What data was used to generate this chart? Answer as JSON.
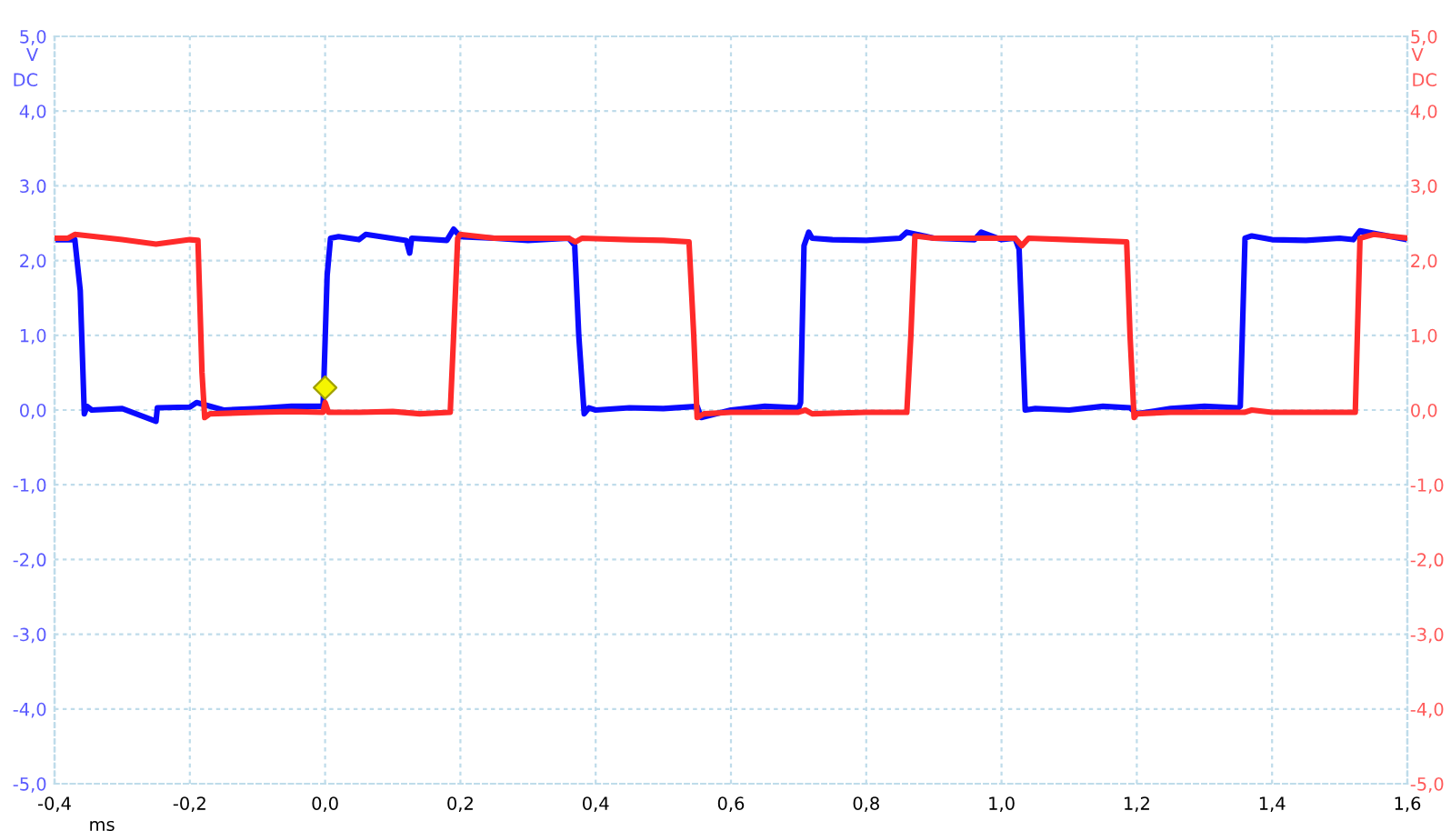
{
  "chart_data": {
    "type": "line",
    "xlabel": "ms",
    "ylabel": "V\nDC",
    "y2label": "V\nDC",
    "xlim": [
      -0.4,
      1.6
    ],
    "xticks": [
      {
        "value": -0.4,
        "label": "-0,4"
      },
      {
        "value": -0.2,
        "label": "-0,2"
      },
      {
        "value": 0.0,
        "label": "0,0"
      },
      {
        "value": 0.2,
        "label": "0,2"
      },
      {
        "value": 0.4,
        "label": "0,4"
      },
      {
        "value": 0.6,
        "label": "0,6"
      },
      {
        "value": 0.8,
        "label": "0,8"
      },
      {
        "value": 1.0,
        "label": "1,0"
      },
      {
        "value": 1.2,
        "label": "1,2"
      },
      {
        "value": 1.4,
        "label": "1,4"
      },
      {
        "value": 1.6,
        "label": "1,6"
      }
    ],
    "ylim": [
      -5,
      5
    ],
    "yticks": [
      {
        "value": -5,
        "label": "-5,0"
      },
      {
        "value": -4,
        "label": "-4,0"
      },
      {
        "value": -3,
        "label": "-3,0"
      },
      {
        "value": -2,
        "label": "-2,0"
      },
      {
        "value": -1,
        "label": "-1,0"
      },
      {
        "value": 0,
        "label": "0,0"
      },
      {
        "value": 1,
        "label": "1,0"
      },
      {
        "value": 2,
        "label": "2,0"
      },
      {
        "value": 3,
        "label": "3,0"
      },
      {
        "value": 4,
        "label": "4,0"
      },
      {
        "value": 5,
        "label": "5,0"
      }
    ],
    "y2lim": [
      -5,
      5
    ],
    "y2ticks": [
      {
        "value": -5,
        "label": "-5,0"
      },
      {
        "value": -4,
        "label": "-4,0"
      },
      {
        "value": -3,
        "label": "-3,0"
      },
      {
        "value": -2,
        "label": "-2,0"
      },
      {
        "value": -1,
        "label": "-1,0"
      },
      {
        "value": 0,
        "label": "0,0"
      },
      {
        "value": 1,
        "label": "1,0"
      },
      {
        "value": 2,
        "label": "2,0"
      },
      {
        "value": 3,
        "label": "3,0"
      },
      {
        "value": 4,
        "label": "4,0"
      },
      {
        "value": 5,
        "label": "5,0"
      }
    ],
    "grid": true,
    "line_style": "solid",
    "legend": false,
    "series": [
      {
        "axis": "y2",
        "color": "#ff2a2a",
        "x": [
          -0.4,
          -0.38,
          -0.37,
          -0.3,
          -0.25,
          -0.2,
          -0.188,
          -0.182,
          -0.178,
          -0.17,
          -0.1,
          -0.05,
          -0.003,
          0.0,
          0.005,
          0.05,
          0.1,
          0.14,
          0.185,
          0.19,
          0.196,
          0.2,
          0.25,
          0.3,
          0.36,
          0.37,
          0.38,
          0.45,
          0.5,
          0.538,
          0.545,
          0.55,
          0.56,
          0.6,
          0.7,
          0.71,
          0.72,
          0.8,
          0.86,
          0.866,
          0.872,
          0.9,
          0.95,
          1.02,
          1.03,
          1.04,
          1.1,
          1.185,
          1.19,
          1.196,
          1.2,
          1.25,
          1.3,
          1.36,
          1.37,
          1.4,
          1.5,
          1.523,
          1.53,
          1.55,
          1.6
        ],
        "values": [
          2.3,
          2.3,
          2.35,
          2.28,
          2.22,
          2.28,
          2.27,
          0.5,
          -0.1,
          -0.05,
          -0.03,
          -0.02,
          -0.03,
          0.1,
          -0.03,
          -0.03,
          -0.02,
          -0.05,
          -0.03,
          1.0,
          2.3,
          2.35,
          2.3,
          2.3,
          2.3,
          2.25,
          2.3,
          2.28,
          2.27,
          2.25,
          1.0,
          -0.1,
          -0.05,
          -0.03,
          -0.03,
          0.0,
          -0.05,
          -0.03,
          -0.03,
          1.0,
          2.33,
          2.3,
          2.3,
          2.3,
          2.2,
          2.3,
          2.28,
          2.25,
          1.0,
          -0.1,
          -0.05,
          -0.03,
          -0.03,
          -0.03,
          0.0,
          -0.03,
          -0.03,
          -0.03,
          2.3,
          2.35,
          2.3
        ]
      },
      {
        "color": "#0a0aff",
        "x": [
          -0.4,
          -0.37,
          -0.362,
          -0.356,
          -0.352,
          -0.345,
          -0.3,
          -0.25,
          -0.248,
          -0.2,
          -0.19,
          -0.15,
          -0.1,
          -0.05,
          -0.003,
          0.003,
          0.008,
          0.02,
          0.05,
          0.06,
          0.12,
          0.125,
          0.128,
          0.18,
          0.19,
          0.2,
          0.25,
          0.3,
          0.36,
          0.369,
          0.375,
          0.383,
          0.39,
          0.4,
          0.45,
          0.5,
          0.55,
          0.556,
          0.6,
          0.65,
          0.7,
          0.703,
          0.708,
          0.715,
          0.72,
          0.75,
          0.8,
          0.85,
          0.86,
          0.9,
          0.96,
          0.97,
          1.0,
          1.02,
          1.026,
          1.035,
          1.05,
          1.1,
          1.15,
          1.19,
          1.2,
          1.25,
          1.3,
          1.35,
          1.353,
          1.36,
          1.37,
          1.4,
          1.45,
          1.5,
          1.52,
          1.53,
          1.6
        ],
        "values": [
          2.28,
          2.28,
          1.6,
          -0.05,
          0.05,
          0.0,
          0.02,
          -0.15,
          0.03,
          0.04,
          0.1,
          0.0,
          0.02,
          0.05,
          0.05,
          1.8,
          2.3,
          2.32,
          2.28,
          2.35,
          2.27,
          2.1,
          2.3,
          2.27,
          2.42,
          2.32,
          2.3,
          2.27,
          2.3,
          2.2,
          1.0,
          -0.05,
          0.03,
          0.0,
          0.03,
          0.02,
          0.05,
          -0.1,
          0.0,
          0.05,
          0.03,
          0.1,
          2.2,
          2.38,
          2.3,
          2.28,
          2.27,
          2.3,
          2.38,
          2.3,
          2.28,
          2.38,
          2.28,
          2.3,
          2.15,
          0.0,
          0.02,
          0.0,
          0.05,
          0.03,
          -0.05,
          0.02,
          0.05,
          0.03,
          0.05,
          2.3,
          2.33,
          2.28,
          2.27,
          2.3,
          2.28,
          2.4,
          2.28
        ]
      },
      {
        "type": "scatter",
        "marker": "diamond",
        "color": "#f5f500",
        "x": [
          0.0
        ],
        "values": [
          0.3
        ]
      }
    ]
  }
}
